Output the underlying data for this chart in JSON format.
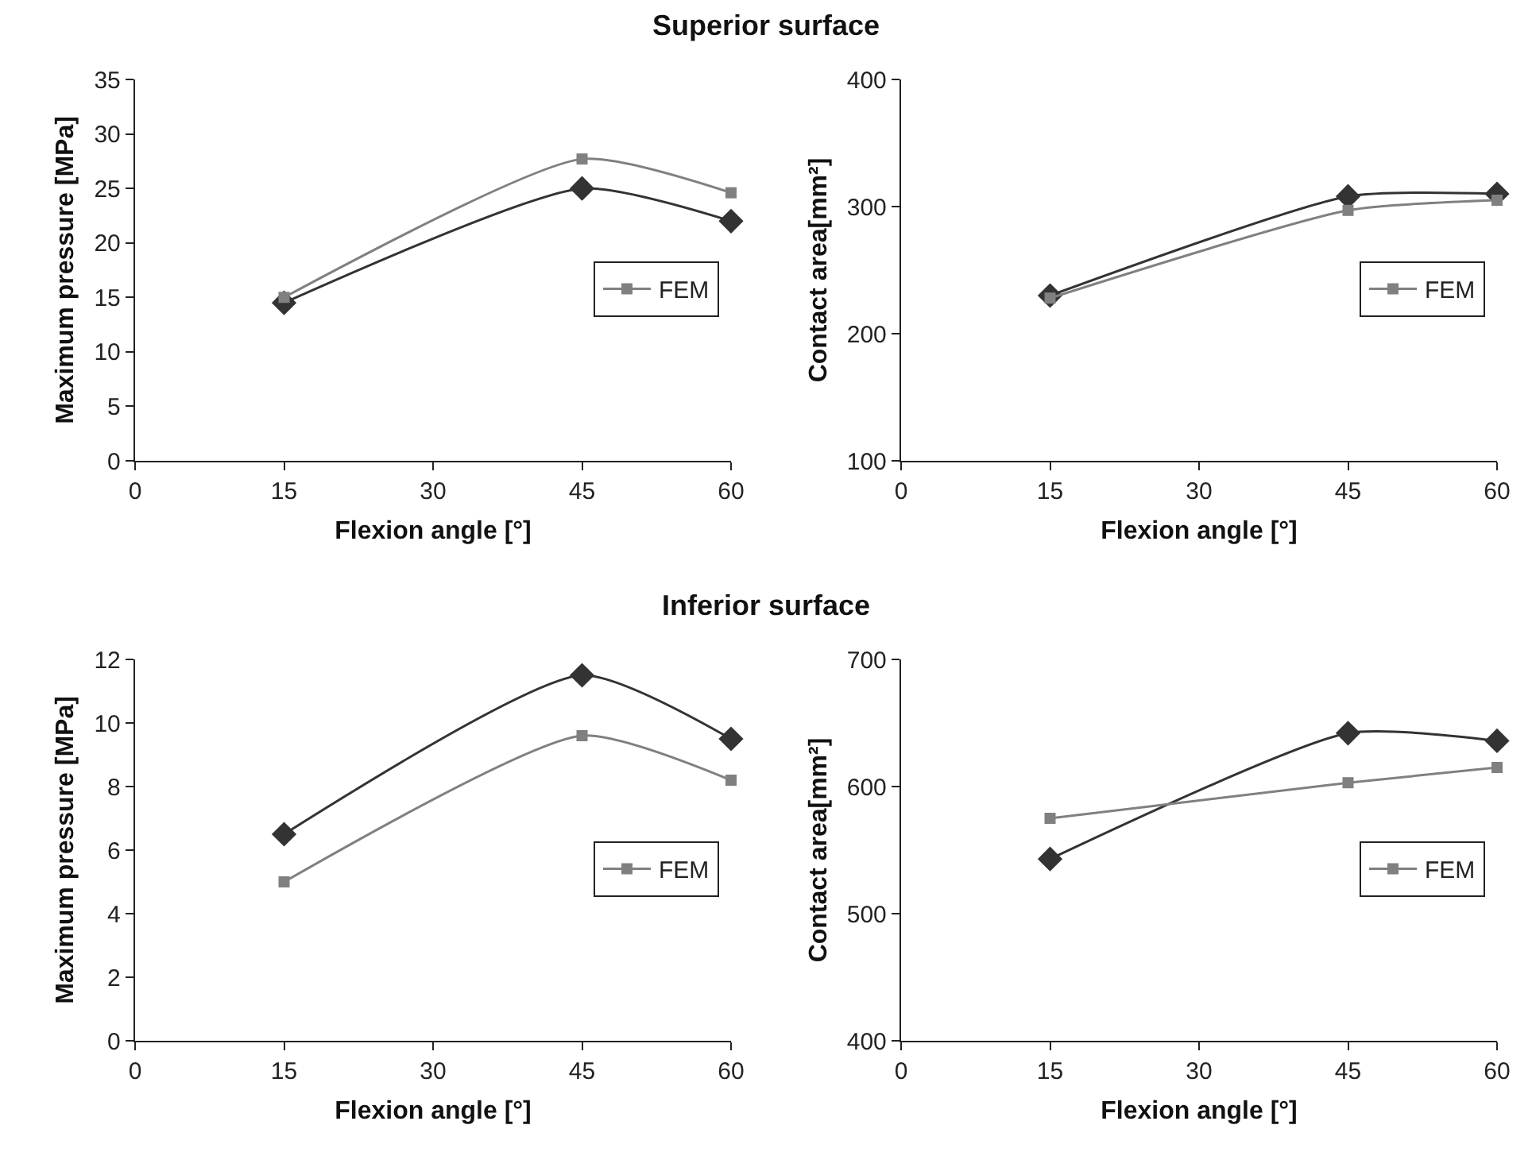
{
  "chart_data": [
    {
      "type": "line",
      "title": "Superior surface",
      "xlabel": "Flexion angle [°]",
      "ylabel": "Maximum pressure [MPa]",
      "x": [
        15,
        45,
        60
      ],
      "xlim": [
        0,
        60
      ],
      "xticks": [
        0,
        15,
        30,
        45,
        60
      ],
      "ylim": [
        0,
        35
      ],
      "yticks": [
        0,
        5,
        10,
        15,
        20,
        25,
        30,
        35
      ],
      "grid": false,
      "legend": "right",
      "line_style": "solid",
      "series": [
        {
          "color": "#333333",
          "marker": "diamond",
          "values": [
            14.5,
            25,
            22
          ]
        },
        {
          "name": "FEM",
          "color": "#808080",
          "marker": "square",
          "values": [
            15,
            27.7,
            24.6
          ]
        }
      ]
    },
    {
      "type": "line",
      "xlabel": "Flexion angle [°]",
      "ylabel": "Contact area[mm²]",
      "x": [
        15,
        45,
        60
      ],
      "xlim": [
        0,
        60
      ],
      "xticks": [
        0,
        15,
        30,
        45,
        60
      ],
      "ylim": [
        100,
        400
      ],
      "yticks": [
        100,
        200,
        300,
        400
      ],
      "grid": false,
      "legend": "right",
      "line_style": "solid",
      "series": [
        {
          "color": "#333333",
          "marker": "diamond",
          "values": [
            230,
            308,
            310
          ]
        },
        {
          "name": "FEM",
          "color": "#808080",
          "marker": "square",
          "values": [
            228,
            297,
            305
          ]
        }
      ]
    },
    {
      "type": "line",
      "title": "Inferior surface",
      "xlabel": "Flexion angle [°]",
      "ylabel": "Maximum pressure [MPa]",
      "x": [
        15,
        45,
        60
      ],
      "xlim": [
        0,
        60
      ],
      "xticks": [
        0,
        15,
        30,
        45,
        60
      ],
      "ylim": [
        0,
        12
      ],
      "yticks": [
        0,
        2,
        4,
        6,
        8,
        10,
        12
      ],
      "grid": false,
      "legend": "right",
      "line_style": "solid",
      "series": [
        {
          "color": "#333333",
          "marker": "diamond",
          "values": [
            6.5,
            11.5,
            9.5
          ]
        },
        {
          "name": "FEM",
          "color": "#808080",
          "marker": "square",
          "values": [
            5,
            9.6,
            8.2
          ]
        }
      ]
    },
    {
      "type": "line",
      "xlabel": "Flexion angle [°]",
      "ylabel": "Contact area[mm²]",
      "x": [
        15,
        45,
        60
      ],
      "xlim": [
        0,
        60
      ],
      "xticks": [
        0,
        15,
        30,
        45,
        60
      ],
      "ylim": [
        400,
        700
      ],
      "yticks": [
        400,
        500,
        600,
        700
      ],
      "grid": false,
      "legend": "right",
      "line_style": "solid",
      "series": [
        {
          "color": "#333333",
          "marker": "diamond",
          "values": [
            543,
            642,
            636
          ]
        },
        {
          "name": "FEM",
          "color": "#808080",
          "marker": "square",
          "values": [
            575,
            603,
            615
          ]
        }
      ]
    }
  ]
}
